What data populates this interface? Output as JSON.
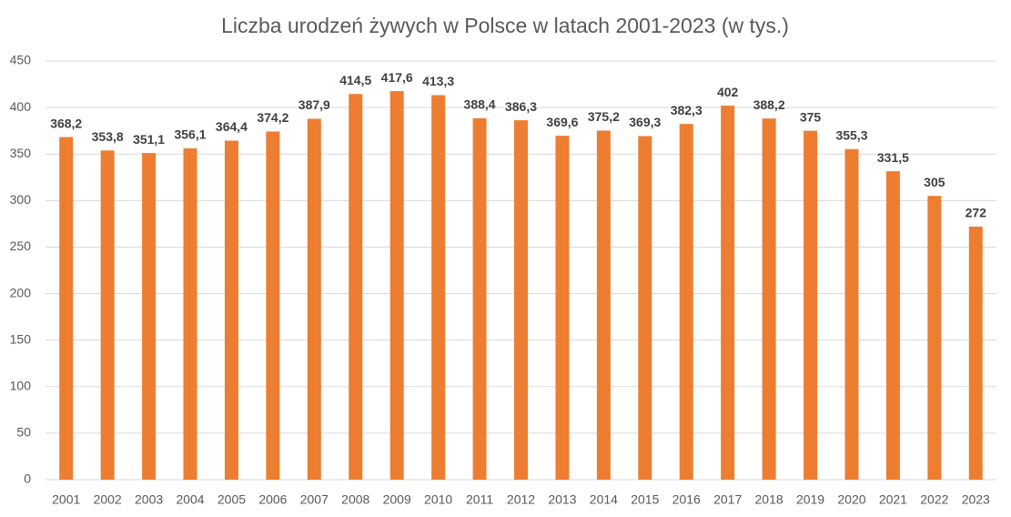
{
  "chart_data": {
    "type": "bar",
    "title": "Liczba urodzeń żywych w Polsce w latach 2001-2023 (w tys.)",
    "categories": [
      "2001",
      "2002",
      "2003",
      "2004",
      "2005",
      "2006",
      "2007",
      "2008",
      "2009",
      "2010",
      "2011",
      "2012",
      "2013",
      "2014",
      "2015",
      "2016",
      "2017",
      "2018",
      "2019",
      "2020",
      "2021",
      "2022",
      "2023"
    ],
    "values": [
      368.2,
      353.8,
      351.1,
      356.1,
      364.4,
      374.2,
      387.9,
      414.5,
      417.6,
      413.3,
      388.4,
      386.3,
      369.6,
      375.2,
      369.3,
      382.3,
      402,
      388.2,
      375,
      355.3,
      331.5,
      305,
      272
    ],
    "value_labels": [
      "368,2",
      "353,8",
      "351,1",
      "356,1",
      "364,4",
      "374,2",
      "387,9",
      "414,5",
      "417,6",
      "413,3",
      "388,4",
      "386,3",
      "369,6",
      "375,2",
      "369,3",
      "382,3",
      "402",
      "388,2",
      "375",
      "355,3",
      "331,5",
      "305",
      "272"
    ],
    "color": "#ed7d31",
    "ylim": [
      0,
      450
    ],
    "yticks": [
      0,
      50,
      100,
      150,
      200,
      250,
      300,
      350,
      400,
      450
    ],
    "grid": true
  }
}
